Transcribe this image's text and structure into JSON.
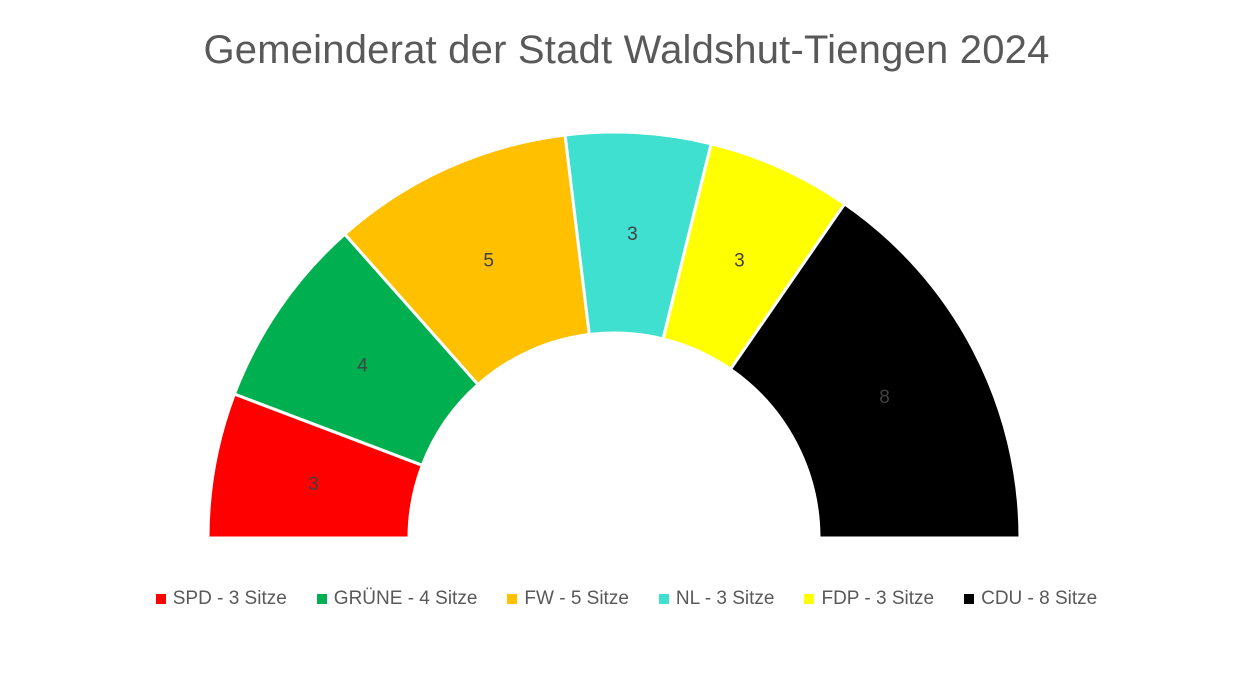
{
  "chart_data": {
    "type": "pie",
    "subtype": "half-donut",
    "title": "Gemeinderat der Stadt Waldshut-Tiengen 2024",
    "categories": [
      "SPD",
      "GRÜNE",
      "FW",
      "NL",
      "FDP",
      "CDU"
    ],
    "values": [
      3,
      4,
      5,
      3,
      3,
      8
    ],
    "data_labels": [
      "3",
      "4",
      "5",
      "3",
      "3",
      "8"
    ],
    "colors": [
      "#ff0000",
      "#00b050",
      "#ffc000",
      "#40e0d0",
      "#ffff00",
      "#000000"
    ],
    "legend": {
      "position": "bottom",
      "entries": [
        "SPD - 3 Sitze",
        "GRÜNE - 4 Sitze",
        "FW - 5 Sitze",
        "NL - 3 Sitze",
        "FDP - 3 Sitze",
        "CDU - 8 Sitze"
      ]
    }
  }
}
